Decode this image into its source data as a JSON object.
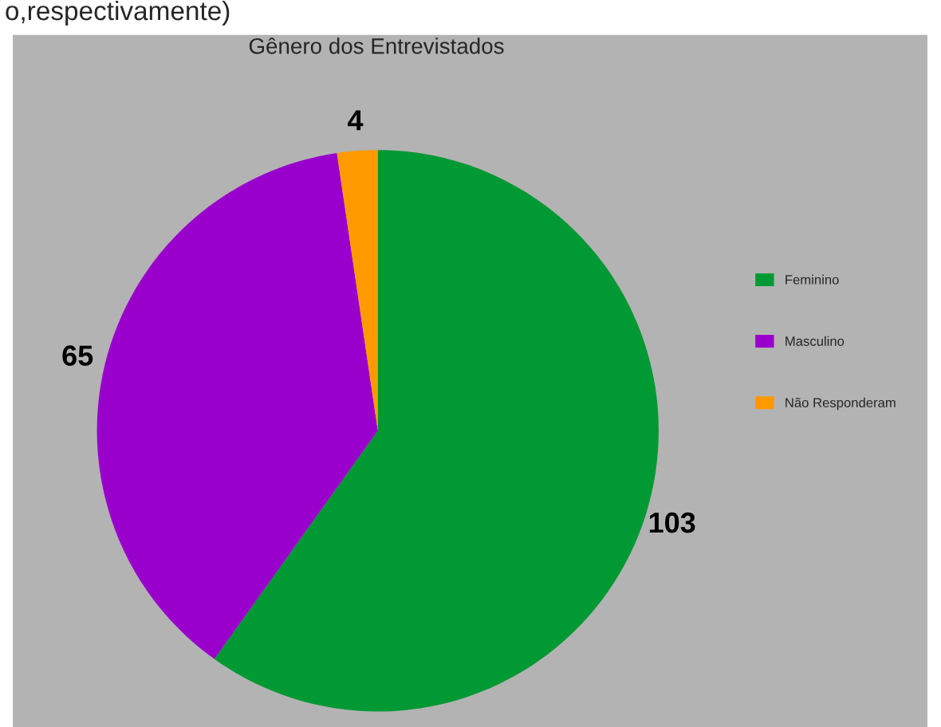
{
  "chart_data": {
    "type": "pie",
    "title": "Gênero dos Entrevistados",
    "annotations": [
      "o,respectivamente)"
    ],
    "categories": [
      "Feminino",
      "Masculino",
      "Não Responderam"
    ],
    "values": [
      103,
      65,
      4
    ],
    "colors": [
      "#009933",
      "#9900cc",
      "#ff9900"
    ],
    "data_labels": true,
    "legend": "right"
  }
}
